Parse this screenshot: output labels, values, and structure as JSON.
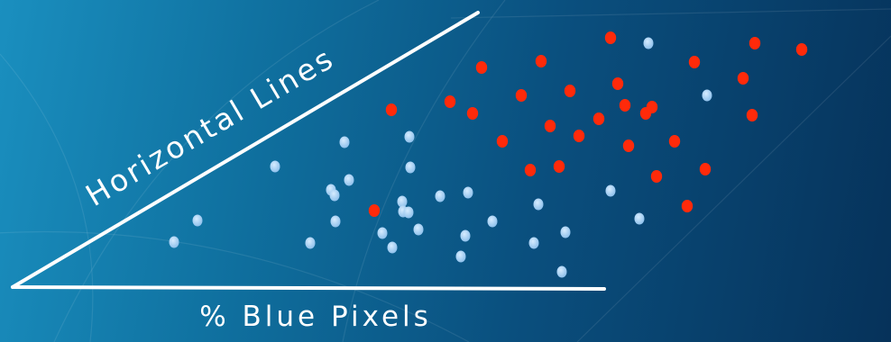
{
  "chart_data": {
    "type": "scatter",
    "title": "",
    "xlabel": "% Blue Pixels",
    "ylabel": "Horizontal Lines",
    "grid": false,
    "legend": "none",
    "colors": {
      "blue": "#8fc1ec",
      "red": "#ff2a0a",
      "axes": "#ffffff"
    },
    "series": [
      {
        "color": "blue",
        "points": [
          [
            193,
            269
          ],
          [
            219,
            245
          ],
          [
            305,
            185
          ],
          [
            344,
            270
          ],
          [
            367,
            211
          ],
          [
            372,
            246
          ],
          [
            371,
            217
          ],
          [
            382,
            158
          ],
          [
            387,
            200
          ],
          [
            424,
            259
          ],
          [
            435,
            275
          ],
          [
            446,
            224
          ],
          [
            447,
            235
          ],
          [
            453,
            236
          ],
          [
            454,
            152
          ],
          [
            455,
            186
          ],
          [
            464,
            255
          ],
          [
            488,
            218
          ],
          [
            511,
            285
          ],
          [
            516,
            262
          ],
          [
            519,
            214
          ],
          [
            546,
            246
          ],
          [
            592,
            270
          ],
          [
            597,
            227
          ],
          [
            623,
            302
          ],
          [
            627,
            258
          ],
          [
            677,
            212
          ],
          [
            709,
            243
          ],
          [
            719,
            48
          ],
          [
            784,
            106
          ]
        ]
      },
      {
        "color": "red",
        "points": [
          [
            415,
            234
          ],
          [
            434,
            122
          ],
          [
            499,
            113
          ],
          [
            524,
            126
          ],
          [
            534,
            75
          ],
          [
            557,
            157
          ],
          [
            578,
            106
          ],
          [
            588,
            189
          ],
          [
            600,
            68
          ],
          [
            610,
            140
          ],
          [
            620,
            185
          ],
          [
            632,
            101
          ],
          [
            642,
            151
          ],
          [
            664,
            132
          ],
          [
            677,
            42
          ],
          [
            685,
            93
          ],
          [
            693,
            117
          ],
          [
            697,
            162
          ],
          [
            716,
            126
          ],
          [
            723,
            119
          ],
          [
            728,
            196
          ],
          [
            748,
            157
          ],
          [
            762,
            229
          ],
          [
            770,
            69
          ],
          [
            782,
            188
          ],
          [
            824,
            87
          ],
          [
            834,
            128
          ],
          [
            837,
            48
          ],
          [
            889,
            55
          ]
        ]
      }
    ]
  }
}
